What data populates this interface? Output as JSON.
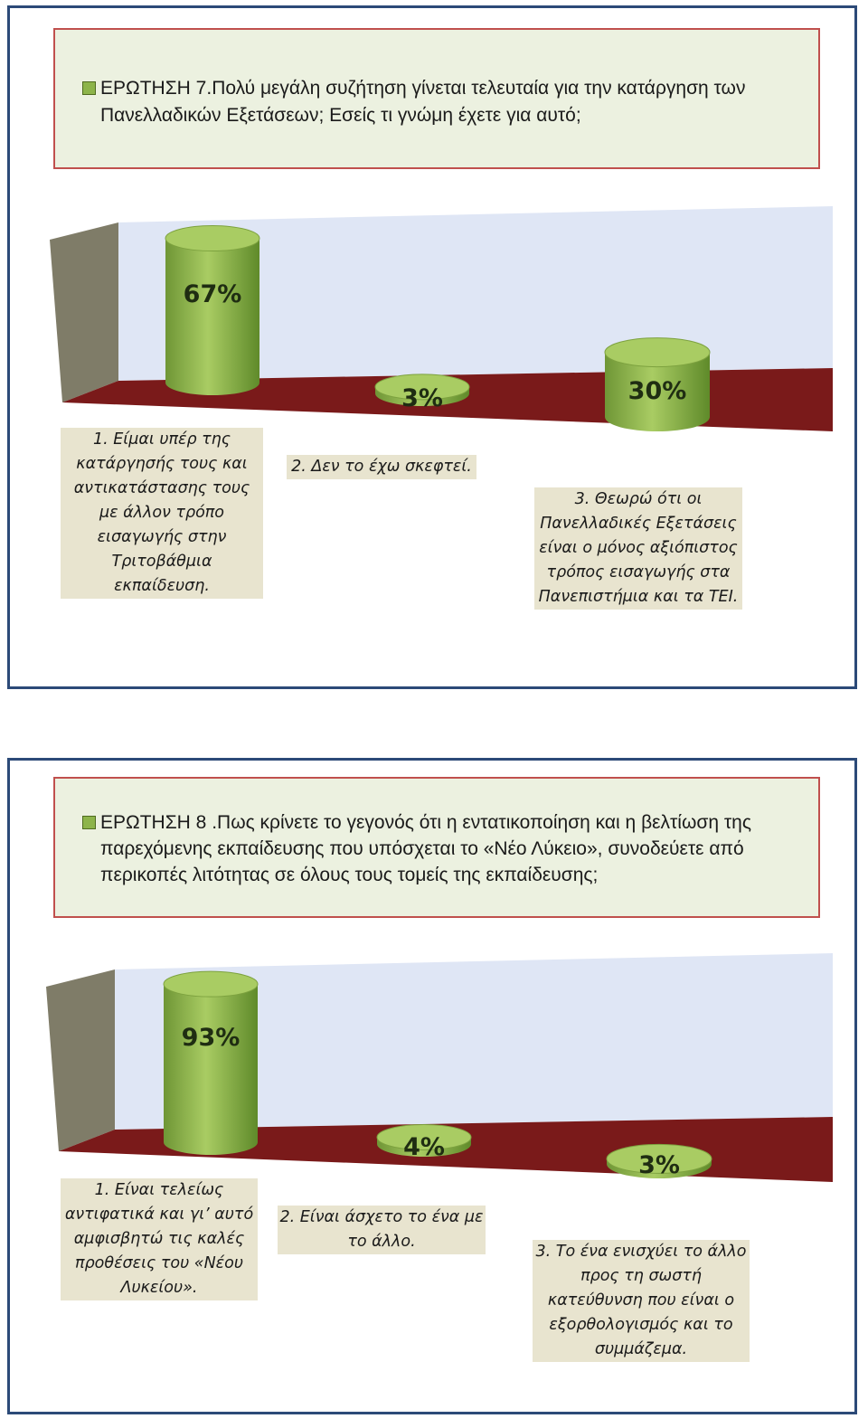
{
  "chart_data": [
    {
      "type": "bar",
      "title": "ΕΡΩΤΗΣΗ 7.Πολύ μεγάλη συζήτηση γίνεται τελευταία για την κατάργηση των Πανελλαδικών Εξετάσεων; Εσείς τι γνώμη έχετε για αυτό;",
      "categories": [
        "1. Είμαι υπέρ της κατάργησής τους και αντικατάστασης τους με άλλον τρόπο εισαγωγής στην Τριτοβάθμια εκπαίδευση.",
        "2. Δεν το έχω σκεφτεί.",
        "3. Θεωρώ ότι οι Πανελλαδικές Εξετάσεις είναι ο μόνος αξιόπιστος τρόπος εισαγωγής στα Πανεπιστήμια και τα ΤΕΙ."
      ],
      "values": [
        67,
        3,
        30
      ],
      "value_labels": [
        "67%",
        "3%",
        "30%"
      ],
      "ylim": [
        0,
        100
      ],
      "style": "3d-cylinder",
      "colors": {
        "bar": "#8db44a",
        "bar_top": "#a9cc63",
        "floor": "#7a1a1a",
        "back_wall": "#dfe6f5",
        "side_wall": "#7f7c68"
      }
    },
    {
      "type": "bar",
      "title": "ΕΡΩΤΗΣΗ 8 .Πως κρίνετε το γεγονός ότι η εντατικοποίηση και η βελτίωση της παρεχόμενης εκπαίδευσης που υπόσχεται το «Νέο Λύκειο», συνοδεύετε από περικοπές λιτότητας σε όλους τους τομείς της εκπαίδευσης;",
      "categories": [
        "1. Είναι τελείως αντιφατικά και γι’ αυτό αμφισβητώ τις καλές προθέσεις του «Νέου Λυκείου».",
        "2. Είναι άσχετο το ένα με το άλλο.",
        "3. Το ένα ενισχύει το άλλο προς τη σωστή κατεύθυνση που είναι ο εξορθολογισμός και το συμμάζεμα."
      ],
      "values": [
        93,
        4,
        3
      ],
      "value_labels": [
        "93%",
        "4%",
        "3%"
      ],
      "ylim": [
        0,
        100
      ],
      "style": "3d-cylinder",
      "colors": {
        "bar": "#8db44a",
        "bar_top": "#a9cc63",
        "floor": "#7a1a1a",
        "back_wall": "#dfe6f5",
        "side_wall": "#7f7c68"
      }
    }
  ]
}
